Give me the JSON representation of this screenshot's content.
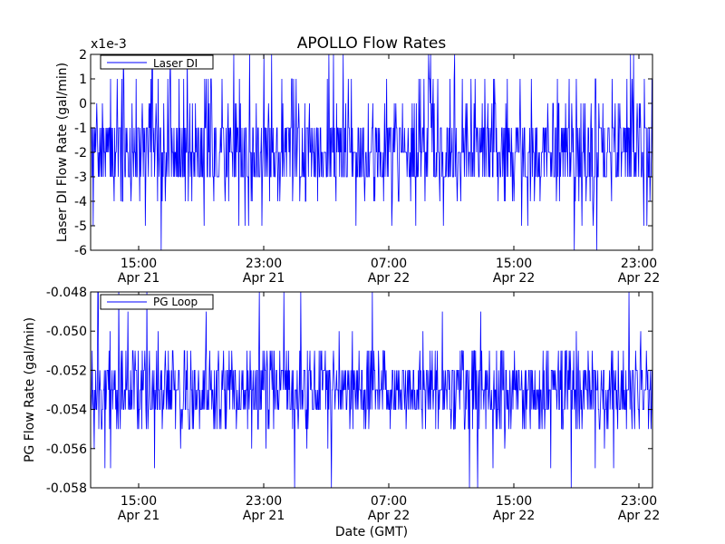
{
  "figure": {
    "title": "APOLLO Flow Rates",
    "xlabel": "Date (GMT)"
  },
  "colors": {
    "series": "#0000ff",
    "axes": "#000000",
    "background": "#ffffff"
  },
  "chart_data": [
    {
      "type": "line",
      "title": "APOLLO Flow Rates",
      "ylabel": "Laser DI Flow Rate (gal/min)",
      "offset_label": "x1e-3",
      "ylim": [
        -6,
        2
      ],
      "yticks": [
        2,
        1,
        0,
        -1,
        -2,
        -3,
        -4,
        -5,
        -6
      ],
      "ytick_labels": [
        "2",
        "1",
        "0",
        "-1",
        "-2",
        "-3",
        "-4",
        "-5",
        "-6"
      ],
      "xlim": [
        "Apr 21 10:00",
        "Apr 23 00:30"
      ],
      "xticks": [
        {
          "time": "15:00",
          "date": "Apr 21"
        },
        {
          "time": "23:00",
          "date": "Apr 21"
        },
        {
          "time": "07:00",
          "date": "Apr 22"
        },
        {
          "time": "15:00",
          "date": "Apr 22"
        },
        {
          "time": "23:00",
          "date": "Apr 22"
        }
      ],
      "legend": {
        "label": "Laser DI",
        "position": "upper-left"
      },
      "series": [
        {
          "name": "Laser DI",
          "color": "#0000ff",
          "baseline_range": [
            -3,
            -1
          ],
          "typical_values": [
            -3,
            -2,
            -1
          ],
          "frequent_excursions": [
            -4,
            0,
            1
          ],
          "rare_spikes": [
            2,
            -5,
            -6
          ]
        }
      ]
    },
    {
      "type": "line",
      "ylabel": "PG Flow Rate (gal/min)",
      "ylim": [
        -0.058,
        -0.048
      ],
      "yticks": [
        -0.048,
        -0.05,
        -0.052,
        -0.054,
        -0.056,
        -0.058
      ],
      "ytick_labels": [
        "-0.048",
        "-0.050",
        "-0.052",
        "-0.054",
        "-0.056",
        "-0.058"
      ],
      "xlabel": "Date (GMT)",
      "xlim": [
        "Apr 21 10:00",
        "Apr 23 00:30"
      ],
      "xticks": [
        {
          "time": "15:00",
          "date": "Apr 21"
        },
        {
          "time": "23:00",
          "date": "Apr 21"
        },
        {
          "time": "07:00",
          "date": "Apr 22"
        },
        {
          "time": "15:00",
          "date": "Apr 22"
        },
        {
          "time": "23:00",
          "date": "Apr 22"
        }
      ],
      "legend": {
        "label": "PG Loop",
        "position": "upper-left"
      },
      "series": [
        {
          "name": "PG Loop",
          "color": "#0000ff",
          "baseline_range": [
            -0.054,
            -0.052
          ],
          "typical_values": [
            -0.054,
            -0.053,
            -0.052
          ],
          "frequent_excursions": [
            -0.055,
            -0.051
          ],
          "rare_spikes": [
            -0.048,
            -0.049,
            -0.05,
            -0.056,
            -0.057,
            -0.058
          ]
        }
      ]
    }
  ]
}
